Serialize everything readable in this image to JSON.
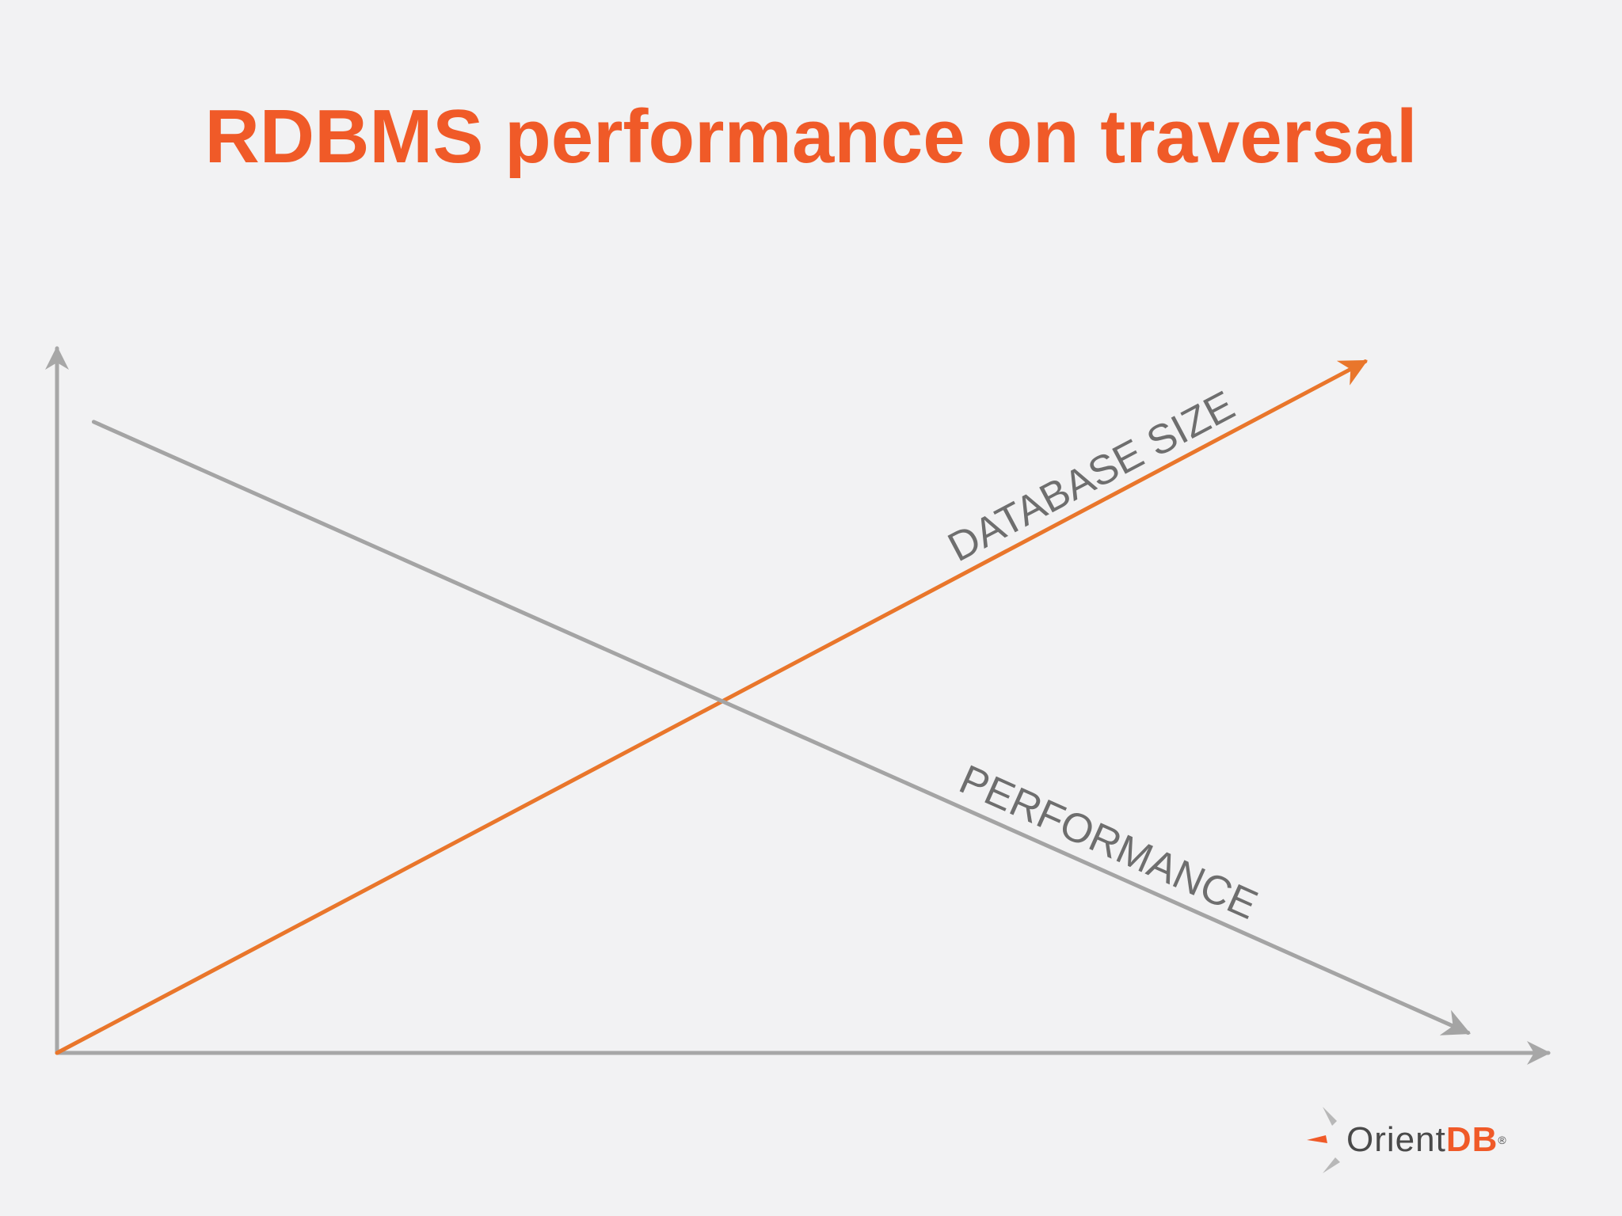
{
  "slide": {
    "title": "RDBMS performance on traversal"
  },
  "colors": {
    "title": "#f05a28",
    "axis": "#a7a7a7",
    "database_size_line": "#e9762b",
    "performance_line": "#a4a4a4",
    "logo_brand": "#f05a28",
    "logo_dark": "#4a4a4a",
    "logo_grey": "#b8b8b8"
  },
  "chart_data": {
    "type": "line",
    "title": "",
    "xlabel": "",
    "ylabel": "",
    "xlim": [
      0,
      100
    ],
    "ylim": [
      0,
      100
    ],
    "grid": false,
    "legend": "none",
    "series": [
      {
        "name": "DATABASE SIZE",
        "x": [
          0,
          89
        ],
        "y": [
          0,
          103
        ],
        "color": "#e9762b",
        "arrow": true
      },
      {
        "name": "PERFORMANCE",
        "x": [
          2.5,
          96
        ],
        "y": [
          94,
          3
        ],
        "color": "#a4a4a4",
        "arrow": true
      }
    ]
  },
  "logo": {
    "name_part1": "Orient",
    "name_part2": "DB",
    "mark": "®",
    "icon": "orientdb-compass-icon"
  }
}
